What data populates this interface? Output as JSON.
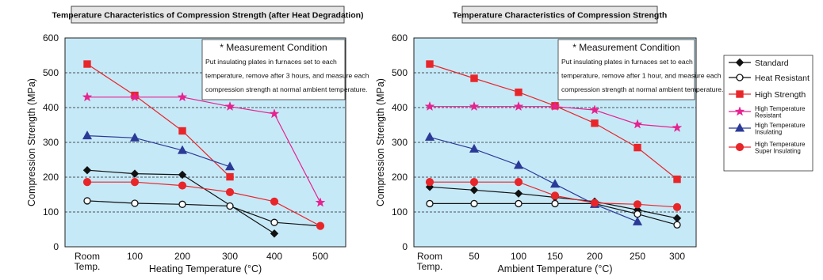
{
  "chart_data": [
    {
      "type": "line",
      "title": "Temperature Characteristics of Compression Strength (after Heat Degradation)",
      "xlabel": "Heating Temperature (°C)",
      "ylabel": "Compression Strength (MPa)",
      "ylim": [
        0,
        600
      ],
      "yticks": [
        "0",
        "100",
        "200",
        "300",
        "400",
        "500",
        "600"
      ],
      "categories": [
        "Room|Temp.",
        "100",
        "200",
        "300",
        "400",
        "500"
      ],
      "grid": true,
      "note": {
        "title": "* Measurement Condition",
        "lines": [
          "Put insulating plates in furnaces set to each",
          "temperature, remove after 3 hours, and measure each",
          "compression strength at normal ambient temperature."
        ]
      },
      "series": [
        {
          "name": "Standard",
          "values": [
            220,
            210,
            207,
            null,
            38,
            null
          ]
        },
        {
          "name": "Heat Resistant",
          "values": [
            132,
            125,
            122,
            117,
            70,
            60
          ]
        },
        {
          "name": "High Strength",
          "values": [
            525,
            435,
            333,
            201,
            null,
            null
          ]
        },
        {
          "name": "High Temperature Resistant",
          "values": [
            430,
            430,
            430,
            403,
            382,
            127
          ]
        },
        {
          "name": "High Temperature Insulating",
          "values": [
            319,
            313,
            277,
            230,
            null,
            null
          ]
        },
        {
          "name": "High Temperature Super Insulating",
          "values": [
            186,
            186,
            176,
            157,
            130,
            60
          ]
        }
      ]
    },
    {
      "type": "line",
      "title": "Temperature Characteristics of Compression Strength",
      "xlabel": "Ambient Temperature (°C)",
      "ylabel": "Compression Strength (MPa)",
      "ylim": [
        0,
        600
      ],
      "yticks": [
        "0",
        "100",
        "200",
        "300",
        "400",
        "500",
        "600"
      ],
      "categories": [
        "Room|Temp.",
        "50",
        "100",
        "150",
        "200",
        "250",
        "300"
      ],
      "grid": true,
      "note": {
        "title": "* Measurement Condition",
        "lines": [
          "Put insulating plates in furnaces set to each",
          "temperature, remove after 1 hour, and measure each",
          "compression strength at normal ambient temperature."
        ]
      },
      "series": [
        {
          "name": "Standard",
          "values": [
            172,
            163,
            153,
            142,
            130,
            106,
            82
          ]
        },
        {
          "name": "Heat Resistant",
          "values": [
            124,
            124,
            124,
            124,
            124,
            94,
            63
          ]
        },
        {
          "name": "High Strength",
          "values": [
            525,
            484,
            444,
            405,
            355,
            285,
            194
          ]
        },
        {
          "name": "High Temperature Resistant",
          "values": [
            403,
            403,
            403,
            403,
            393,
            352,
            342
          ]
        },
        {
          "name": "High Temperature Insulating",
          "values": [
            315,
            281,
            234,
            180,
            122,
            72,
            null
          ]
        },
        {
          "name": "High Temperature Super Insulating",
          "values": [
            186,
            186,
            186,
            147,
            126,
            122,
            114
          ]
        }
      ]
    }
  ],
  "legend": {
    "placement": "right",
    "items": [
      {
        "lines": [
          "Standard"
        ],
        "small": false,
        "marker": "diamond",
        "fill": "#111111",
        "line": "#111111"
      },
      {
        "lines": [
          "Heat Resistant"
        ],
        "small": false,
        "marker": "circle",
        "fill": "#ffffff",
        "line": "#111111"
      },
      {
        "lines": [
          "High Strength"
        ],
        "small": false,
        "marker": "square",
        "fill": "#e8262a",
        "line": "#e8262a"
      },
      {
        "lines": [
          "High Temperature",
          "Resistant"
        ],
        "small": true,
        "marker": "star",
        "fill": "#e6228f",
        "line": "#e6228f"
      },
      {
        "lines": [
          "High Temperature",
          "Insulating"
        ],
        "small": true,
        "marker": "triangle",
        "fill": "#2b3a97",
        "line": "#2b3a97"
      },
      {
        "lines": [
          "High Temperature",
          "Super Insulating"
        ],
        "small": true,
        "marker": "dot",
        "fill": "#e8262a",
        "line": "#e8262a"
      }
    ]
  }
}
